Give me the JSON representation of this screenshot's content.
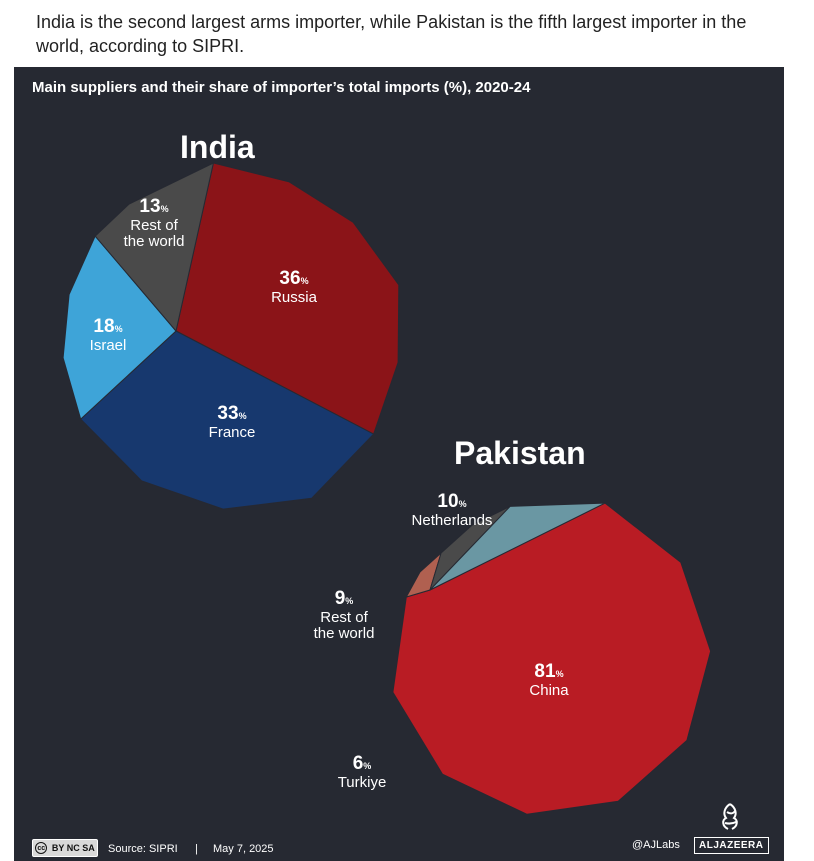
{
  "header": {
    "subtitle": "India is the second largest arms importer, while Pakistan is the fifth largest importer in the world, according to SIPRI."
  },
  "panel": {
    "title": "Main suppliers and their share of importer’s total imports (%), 2020-24"
  },
  "chart_data": [
    {
      "type": "pie",
      "title": "India",
      "unit": "%",
      "slices": [
        {
          "label": "Russia",
          "value": 36,
          "color": "#8b1418"
        },
        {
          "label": "France",
          "value": 33,
          "color": "#17386e"
        },
        {
          "label": "Israel",
          "value": 18,
          "color": "#3ea4d8"
        },
        {
          "label": "Rest of the world",
          "value": 13,
          "color": "#4a4a4a"
        }
      ]
    },
    {
      "type": "pie",
      "title": "Pakistan",
      "unit": "%",
      "slices": [
        {
          "label": "China",
          "value": 81,
          "color": "#b91c24"
        },
        {
          "label": "Netherlands",
          "value": 10,
          "color": "#6a97a3"
        },
        {
          "label": "Rest of the world",
          "value": 9,
          "color": "#4a4a4a"
        },
        {
          "label": "Turkiye",
          "value": 6,
          "color": "#b06050"
        }
      ]
    }
  ],
  "footer": {
    "license": "BY NC SA",
    "source": "Source: SIPRI",
    "separator": "|",
    "date": "May 7, 2025",
    "handle": "@AJLabs",
    "brand": "ALJAZEERA"
  }
}
